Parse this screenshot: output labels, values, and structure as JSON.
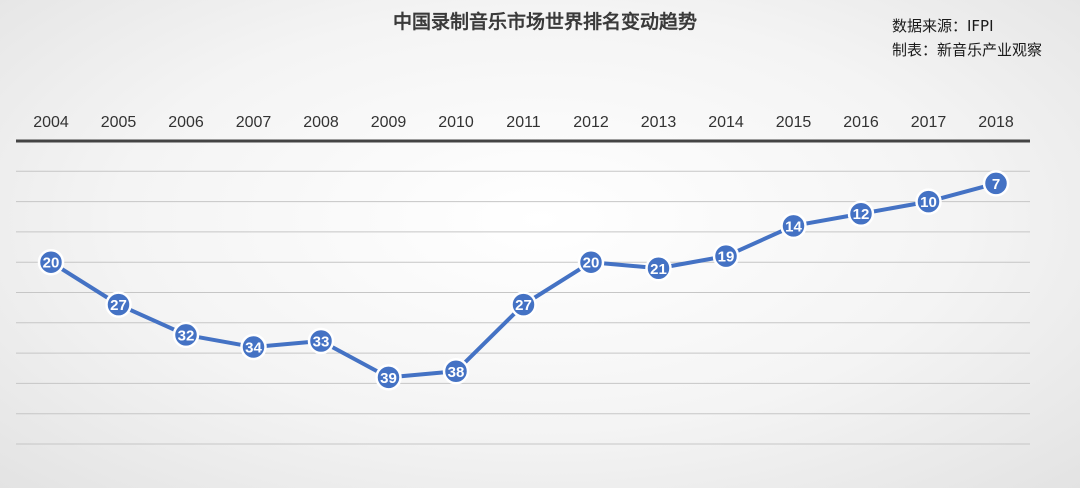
{
  "chart_data": {
    "type": "line",
    "title": "中国录制音乐市场世界排名变动趋势",
    "source_lines": [
      "数据来源：IFPI",
      "制表：新音乐产业观察"
    ],
    "x": [
      "2004",
      "2005",
      "2006",
      "2007",
      "2008",
      "2009",
      "2010",
      "2011",
      "2012",
      "2013",
      "2014",
      "2015",
      "2016",
      "2017",
      "2018"
    ],
    "series": [
      {
        "values": [
          20,
          27,
          32,
          34,
          33,
          39,
          38,
          27,
          20,
          21,
          19,
          14,
          12,
          10,
          7
        ]
      }
    ],
    "y_axis": {
      "inverted": true,
      "range": [
        0,
        50
      ],
      "grid": true,
      "tick_labels_shown": false
    },
    "x_axis_position": "top",
    "colors": {
      "line": "#4472c4",
      "marker": "#4472c4",
      "marker_text": "#ffffff"
    }
  }
}
